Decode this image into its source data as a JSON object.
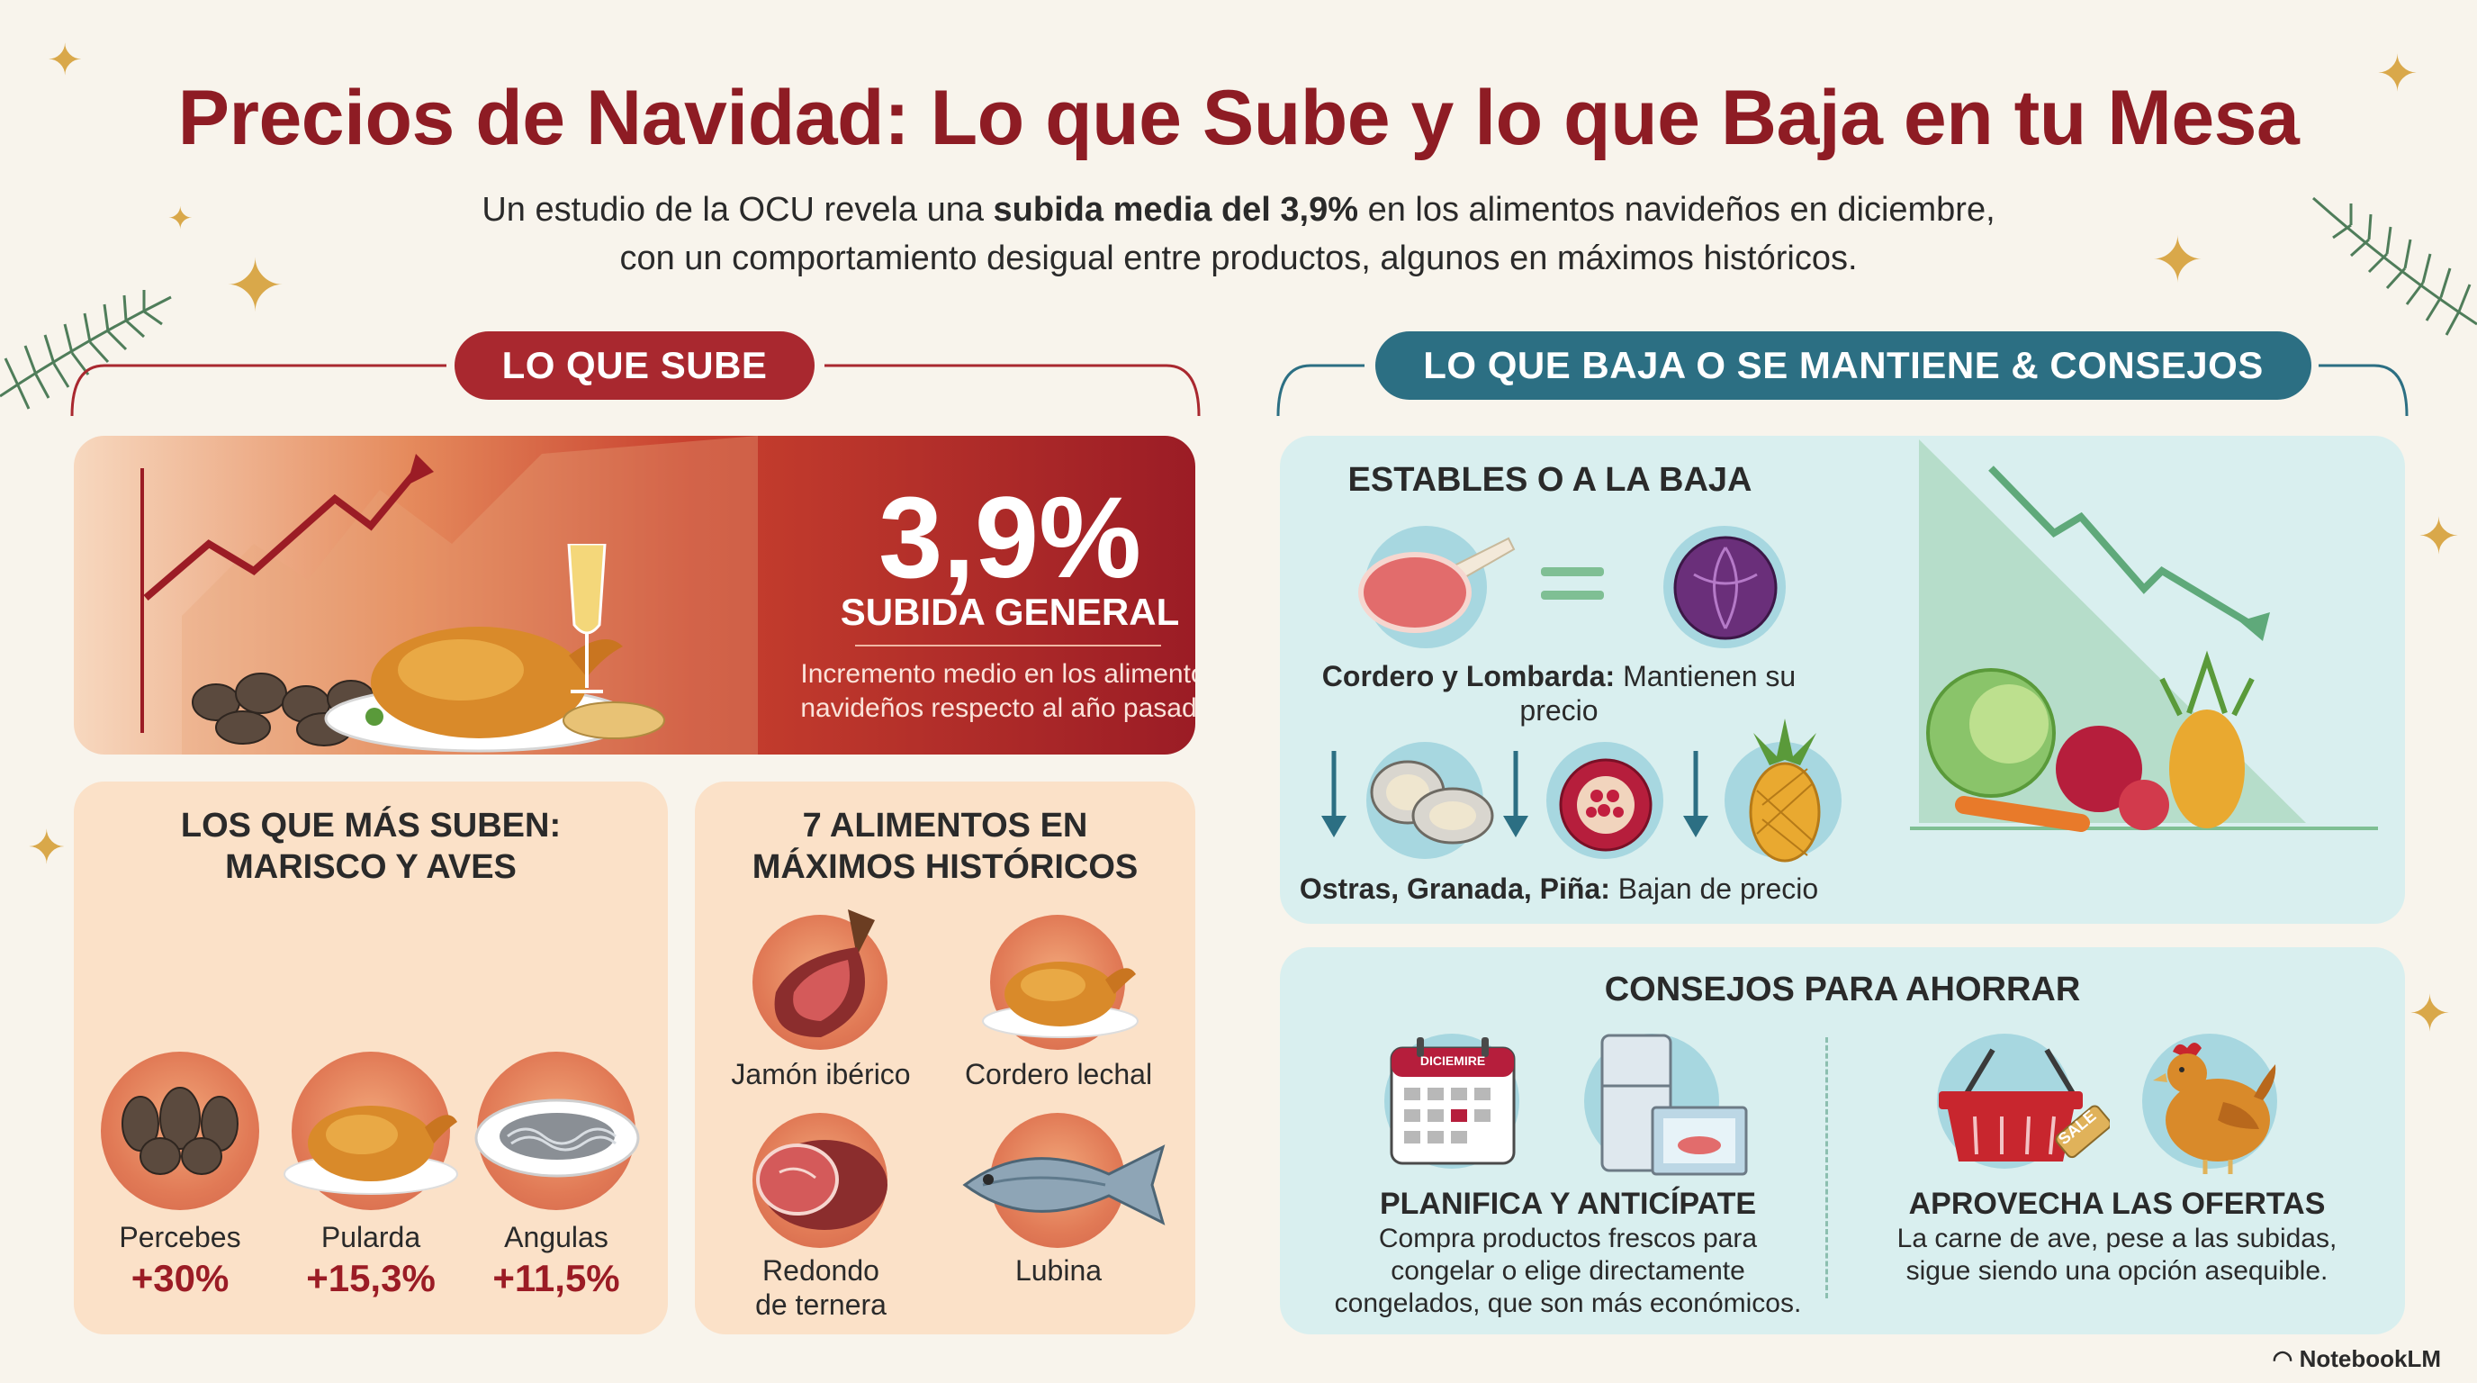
{
  "header": {
    "title": "Precios de Navidad: Lo que Sube y lo que Baja en tu Mesa",
    "subtitle_pre": "Un estudio de la OCU revela una ",
    "subtitle_bold": "subida media del 3,9%",
    "subtitle_post": " en los alimentos navideños en diciembre,",
    "subtitle_line2": "con un comportamiento desigual entre productos, algunos en máximos históricos."
  },
  "left": {
    "section_title": "LO QUE SUBE",
    "hero": {
      "value": "3,9%",
      "label": "SUBIDA GENERAL",
      "desc1": "Incremento medio en los alimentos",
      "desc2": "navideños respecto al año pasado."
    },
    "top_risers": {
      "title1": "LOS QUE MÁS SUBEN:",
      "title2": "MARISCO Y AVES",
      "items": [
        {
          "name": "Percebes",
          "pct": "+30%"
        },
        {
          "name": "Pularda",
          "pct": "+15,3%"
        },
        {
          "name": "Angulas",
          "pct": "+11,5%"
        }
      ]
    },
    "records": {
      "title1": "7 ALIMENTOS EN",
      "title2": "MÁXIMOS HISTÓRICOS",
      "items": [
        "Jamón ibérico",
        "Cordero lechal",
        "Redondo",
        "de ternera",
        "Lubina"
      ]
    }
  },
  "right": {
    "section_title": "LO QUE BAJA O SE MANTIENE & CONSEJOS",
    "stable": {
      "title": "ESTABLES O A LA BAJA",
      "stable_bold": "Cordero y Lombarda:",
      "stable_text": " Mantienen su precio",
      "down_bold": "Ostras, Granada, Piña:",
      "down_text": " Bajan de precio"
    },
    "tips": {
      "title": "CONSEJOS PARA AHORRAR",
      "calendar_label": "DICIEMIRE",
      "sale_label": "SALE",
      "tip1_title": "PLANIFICA Y ANTICÍPATE",
      "tip1_l1": "Compra productos frescos para",
      "tip1_l2": "congelar o elige directamente",
      "tip1_l3": "congelados, que son más económicos.",
      "tip2_title": "APROVECHA LAS OFERTAS",
      "tip2_l1": "La carne de ave, pese a las subidas,",
      "tip2_l2": "sigue siendo una opción asequible."
    }
  },
  "footer": {
    "brand": "NotebookLM"
  },
  "colors": {
    "red": "#9b1c25",
    "teal": "#2c6f83",
    "peach": "#fbe1c8",
    "mint": "#d9efef"
  }
}
